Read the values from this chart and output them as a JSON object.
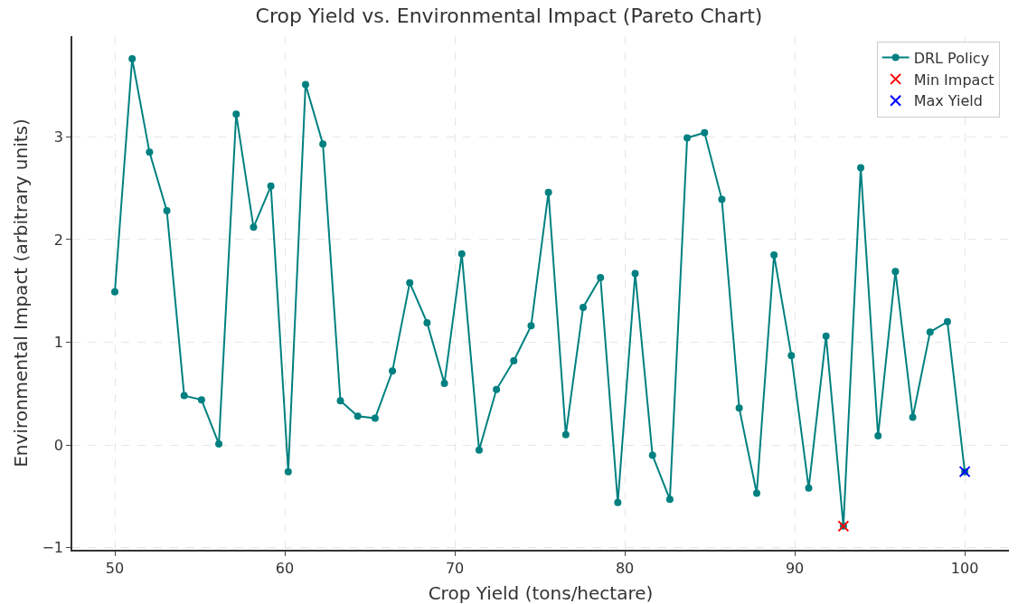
{
  "chart_data": {
    "type": "line",
    "title": "Crop Yield vs. Environmental Impact (Pareto Chart)",
    "xlabel": "Crop Yield (tons/hectare)",
    "ylabel": "Environmental Impact (arbitrary units)",
    "x": [
      50,
      51.02,
      52.04,
      53.06,
      54.08,
      55.1,
      56.12,
      57.14,
      58.16,
      59.18,
      60.2,
      61.22,
      62.24,
      63.27,
      64.29,
      65.31,
      66.33,
      67.35,
      68.37,
      69.39,
      70.41,
      71.43,
      72.45,
      73.47,
      74.49,
      75.51,
      76.53,
      77.55,
      78.57,
      79.59,
      80.61,
      81.63,
      82.65,
      83.67,
      84.69,
      85.71,
      86.73,
      87.76,
      88.78,
      89.8,
      90.82,
      91.84,
      92.86,
      93.88,
      94.9,
      95.92,
      96.94,
      97.96,
      98.98,
      100
    ],
    "series": [
      {
        "name": "DRL Policy",
        "marker": "circle",
        "line_style": "solid",
        "color": "#008080",
        "values": [
          1.49,
          3.76,
          2.85,
          2.28,
          0.48,
          0.44,
          0.01,
          3.22,
          2.12,
          2.52,
          -0.26,
          3.51,
          2.93,
          0.43,
          0.28,
          0.26,
          0.72,
          1.58,
          1.19,
          0.6,
          1.86,
          -0.05,
          0.54,
          0.82,
          1.16,
          2.46,
          0.1,
          1.34,
          1.63,
          -0.56,
          1.67,
          -0.1,
          -0.53,
          2.99,
          3.04,
          2.39,
          0.36,
          -0.47,
          1.85,
          0.87,
          -0.42,
          1.06,
          -0.79,
          2.7,
          0.09,
          1.69,
          0.27,
          1.1,
          1.2,
          -0.26
        ]
      },
      {
        "name": "Min Impact",
        "type": "scatter",
        "marker": "cross",
        "color": "#ff0000",
        "x": [
          92.86
        ],
        "values": [
          -0.79
        ]
      },
      {
        "name": "Max Yield",
        "type": "scatter",
        "marker": "cross",
        "color": "#0000ff",
        "x": [
          100
        ],
        "values": [
          -0.26
        ]
      }
    ],
    "xlim": [
      47.5,
      102.6
    ],
    "xticks": [
      50,
      60,
      70,
      80,
      90,
      100
    ],
    "ylim": [
      -1.02,
      3.98
    ],
    "yticks": [
      {
        "value": -1,
        "label": "−1"
      },
      0,
      1,
      2,
      3
    ],
    "grid": true,
    "legend": "top right"
  }
}
